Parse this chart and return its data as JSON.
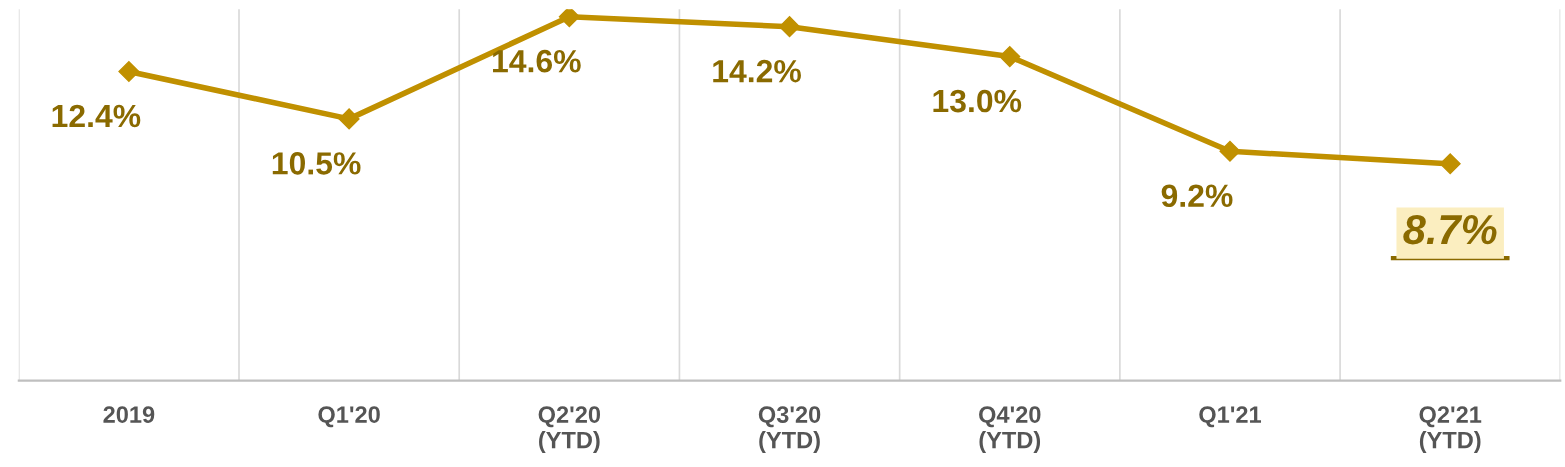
{
  "chart_data": {
    "type": "line",
    "categories": [
      "2019",
      "Q1'20",
      "Q2'20\n(YTD)",
      "Q3'20\n(YTD)",
      "Q4'20\n(YTD)",
      "Q1'21",
      "Q2'21\n(YTD)"
    ],
    "series": [
      {
        "color": "#c09000",
        "values": [
          12.4,
          10.5,
          14.6,
          14.2,
          13.0,
          9.2,
          8.7
        ],
        "value_labels": [
          "12.4%",
          "10.5%",
          "14.6%",
          "14.2%",
          "13.0%",
          "9.2%",
          "8.7%"
        ]
      }
    ],
    "tick_labels": "x",
    "grid": "x",
    "marker": "diamond",
    "line_style": "solid",
    "legend": false
  }
}
